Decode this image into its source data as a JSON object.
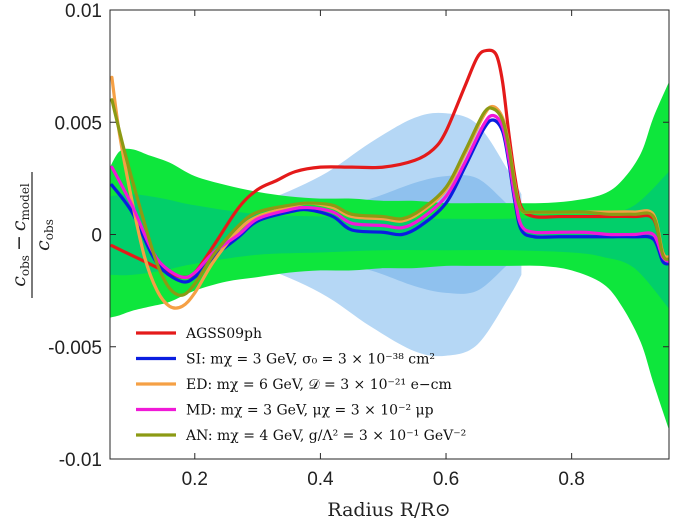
{
  "chart_data": {
    "type": "line",
    "title": "",
    "xlabel": "Radius R/R⊙",
    "ylabel_parts": {
      "top_sym": "c",
      "top_sub1": "obs",
      "minus": "−",
      "top_sym2": "c",
      "top_sub2": "model",
      "bottom_sym": "c",
      "bottom_sub": "obs"
    },
    "xlim": [
      0.065,
      0.955
    ],
    "ylim": [
      -0.01,
      0.01
    ],
    "xticks": [
      0.2,
      0.4,
      0.6,
      0.8
    ],
    "xtick_labels": [
      "0.2",
      "0.4",
      "0.6",
      "0.8"
    ],
    "yticks": [
      -0.01,
      -0.005,
      0,
      0.005,
      0.01
    ],
    "ytick_labels": [
      "-0.01",
      "-0.005",
      "0",
      "0.005",
      "0.01"
    ],
    "grid": false,
    "legend_position": "lower-left",
    "colors": {
      "band_light_blue": "#b5d7f5",
      "band_blue": "#8fc1ee",
      "band_green_outer": "#0ee63c",
      "band_green_inner": "#02cf6a",
      "AGSS09ph": "#e41a1a",
      "SI": "#0a1ee0",
      "ED": "#f5a045",
      "MD": "#f019d7",
      "AN": "#8c9a14"
    },
    "bands": [
      {
        "name": "light-blue-band",
        "x": [
          0.09,
          0.15,
          0.2,
          0.3,
          0.4,
          0.48,
          0.55,
          0.6,
          0.65,
          0.7,
          0.72
        ],
        "upper": [
          0.0008,
          0.0008,
          0.0008,
          0.0014,
          0.0026,
          0.0041,
          0.0052,
          0.0054,
          0.0049,
          0.0028,
          0.0018
        ],
        "lower": [
          -0.0008,
          -0.0008,
          -0.0008,
          -0.0014,
          -0.0026,
          -0.0041,
          -0.0052,
          -0.0054,
          -0.0049,
          -0.0028,
          -0.0018
        ]
      },
      {
        "name": "blue-band",
        "x": [
          0.09,
          0.2,
          0.3,
          0.4,
          0.48,
          0.55,
          0.6,
          0.65,
          0.7,
          0.72
        ],
        "upper": [
          0.0005,
          0.0005,
          0.0007,
          0.0011,
          0.0016,
          0.0023,
          0.0026,
          0.0025,
          0.0013,
          0.001
        ],
        "lower": [
          -0.0005,
          -0.0005,
          -0.0007,
          -0.0011,
          -0.0016,
          -0.0023,
          -0.0026,
          -0.0025,
          -0.0013,
          -0.001
        ]
      },
      {
        "name": "green-outer-band",
        "x": [
          0.065,
          0.08,
          0.1,
          0.13,
          0.16,
          0.2,
          0.25,
          0.3,
          0.35,
          0.4,
          0.45,
          0.5,
          0.55,
          0.6,
          0.65,
          0.7,
          0.75,
          0.8,
          0.85,
          0.88,
          0.91,
          0.93,
          0.955
        ],
        "upper": [
          0.003,
          0.0037,
          0.0038,
          0.0035,
          0.0032,
          0.0026,
          0.0022,
          0.0019,
          0.0017,
          0.0016,
          0.0016,
          0.0015,
          0.0015,
          0.0014,
          0.0014,
          0.0014,
          0.0014,
          0.0015,
          0.0018,
          0.0024,
          0.0036,
          0.0052,
          0.0068
        ],
        "lower": [
          -0.0037,
          -0.0036,
          -0.0034,
          -0.0032,
          -0.003,
          -0.0025,
          -0.0021,
          -0.0019,
          -0.0017,
          -0.0016,
          -0.0016,
          -0.0015,
          -0.0015,
          -0.0014,
          -0.0014,
          -0.0014,
          -0.0014,
          -0.0016,
          -0.0022,
          -0.0032,
          -0.0048,
          -0.0066,
          -0.0087
        ]
      },
      {
        "name": "green-inner-band",
        "x": [
          0.065,
          0.1,
          0.15,
          0.2,
          0.3,
          0.4,
          0.5,
          0.6,
          0.7,
          0.8,
          0.85,
          0.9,
          0.955
        ],
        "upper": [
          0.0017,
          0.0018,
          0.0016,
          0.0013,
          0.0009,
          0.0008,
          0.0007,
          0.0007,
          0.0007,
          0.0008,
          0.0009,
          0.0013,
          0.0028
        ],
        "lower": [
          -0.0018,
          -0.0018,
          -0.0016,
          -0.0013,
          -0.0009,
          -0.0008,
          -0.0007,
          -0.0007,
          -0.0007,
          -0.0008,
          -0.001,
          -0.0015,
          -0.0033
        ]
      }
    ],
    "series": [
      {
        "name": "AGSS09ph",
        "color_key": "AGSS09ph",
        "x": [
          0.068,
          0.09,
          0.12,
          0.15,
          0.18,
          0.2,
          0.23,
          0.27,
          0.3,
          0.33,
          0.36,
          0.4,
          0.45,
          0.5,
          0.55,
          0.58,
          0.6,
          0.63,
          0.65,
          0.665,
          0.68,
          0.69,
          0.7,
          0.71,
          0.72,
          0.74,
          0.78,
          0.82,
          0.86,
          0.9,
          0.93,
          0.945,
          0.955
        ],
        "y": [
          -0.0005,
          -0.0008,
          -0.0012,
          -0.0016,
          -0.0019,
          -0.0017,
          -0.0005,
          0.0012,
          0.002,
          0.0024,
          0.0028,
          0.003,
          0.003,
          0.003,
          0.0033,
          0.0038,
          0.0046,
          0.0066,
          0.0079,
          0.0082,
          0.008,
          0.0068,
          0.0045,
          0.0025,
          0.0012,
          0.0008,
          0.0008,
          0.0008,
          0.0008,
          0.0008,
          0.0007,
          -0.0008,
          -0.0012
        ]
      },
      {
        "name": "SI: mχ = 3 GeV, σ0 = 3 × 10⁻³⁸ cm²",
        "color_key": "SI",
        "x": [
          0.068,
          0.1,
          0.13,
          0.15,
          0.18,
          0.2,
          0.23,
          0.27,
          0.3,
          0.35,
          0.38,
          0.42,
          0.45,
          0.5,
          0.53,
          0.56,
          0.6,
          0.63,
          0.66,
          0.675,
          0.69,
          0.7,
          0.71,
          0.72,
          0.74,
          0.78,
          0.82,
          0.86,
          0.9,
          0.93,
          0.945,
          0.955
        ],
        "y": [
          0.0022,
          0.001,
          -0.0008,
          -0.0016,
          -0.0021,
          -0.0019,
          -0.001,
          -0.0001,
          0.0006,
          0.001,
          0.0011,
          0.0008,
          0.0002,
          0.0001,
          0.0,
          0.0004,
          0.0014,
          0.003,
          0.0047,
          0.0051,
          0.0046,
          0.0032,
          0.0014,
          0.0002,
          -0.0001,
          -0.0001,
          -0.0001,
          -0.0001,
          -0.0001,
          -0.0002,
          -0.0012,
          -0.0013
        ]
      },
      {
        "name": "ED: mχ = 6 GeV, 𝒟 = 3 × 10⁻²¹ e−cm",
        "color_key": "ED",
        "x": [
          0.068,
          0.08,
          0.1,
          0.12,
          0.14,
          0.16,
          0.18,
          0.2,
          0.23,
          0.27,
          0.3,
          0.35,
          0.38,
          0.42,
          0.45,
          0.5,
          0.53,
          0.56,
          0.6,
          0.63,
          0.66,
          0.675,
          0.69,
          0.7,
          0.71,
          0.72,
          0.74,
          0.78,
          0.82,
          0.86,
          0.9,
          0.93,
          0.945,
          0.955
        ],
        "y": [
          0.007,
          0.0045,
          0.0015,
          -0.001,
          -0.0025,
          -0.0032,
          -0.0032,
          -0.0026,
          -0.0012,
          0.0002,
          0.0008,
          0.0012,
          0.0014,
          0.0012,
          0.0008,
          0.0007,
          0.0006,
          0.001,
          0.002,
          0.0036,
          0.0053,
          0.0057,
          0.0052,
          0.004,
          0.0022,
          0.0011,
          0.001,
          0.001,
          0.001,
          0.001,
          0.001,
          0.0009,
          -0.0008,
          -0.001
        ]
      },
      {
        "name": "MD: mχ = 3 GeV, μχ = 3 × 10⁻² μp",
        "color_key": "MD",
        "x": [
          0.068,
          0.1,
          0.13,
          0.15,
          0.18,
          0.2,
          0.23,
          0.27,
          0.3,
          0.35,
          0.38,
          0.42,
          0.45,
          0.5,
          0.53,
          0.56,
          0.6,
          0.63,
          0.66,
          0.675,
          0.69,
          0.7,
          0.71,
          0.72,
          0.74,
          0.78,
          0.82,
          0.86,
          0.9,
          0.93,
          0.945,
          0.955
        ],
        "y": [
          0.003,
          0.0013,
          -0.0006,
          -0.0014,
          -0.0019,
          -0.0017,
          -0.0008,
          0.0,
          0.0007,
          0.0011,
          0.0012,
          0.001,
          0.0005,
          0.0004,
          0.0003,
          0.0007,
          0.0017,
          0.0032,
          0.0049,
          0.0053,
          0.0048,
          0.0034,
          0.0016,
          0.0004,
          0.0001,
          0.0001,
          0.0001,
          0.0,
          0.0,
          0.0,
          -0.001,
          -0.0012
        ]
      },
      {
        "name": "AN: mχ = 4 GeV, g/Λ² = 3 × 10⁻¹ GeV⁻²",
        "color_key": "AN",
        "x": [
          0.068,
          0.09,
          0.12,
          0.14,
          0.16,
          0.18,
          0.2,
          0.23,
          0.27,
          0.3,
          0.35,
          0.38,
          0.42,
          0.45,
          0.5,
          0.53,
          0.56,
          0.6,
          0.63,
          0.66,
          0.675,
          0.69,
          0.7,
          0.71,
          0.72,
          0.74,
          0.78,
          0.82,
          0.86,
          0.9,
          0.93,
          0.945,
          0.955
        ],
        "y": [
          0.006,
          0.0035,
          0.0005,
          -0.0013,
          -0.0024,
          -0.0027,
          -0.0022,
          -0.0009,
          0.0004,
          0.001,
          0.0013,
          0.0014,
          0.0013,
          0.0009,
          0.0008,
          0.0007,
          0.0011,
          0.0021,
          0.0037,
          0.0054,
          0.0056,
          0.0051,
          0.0039,
          0.0021,
          0.0011,
          0.001,
          0.001,
          0.001,
          0.0009,
          0.0009,
          0.0008,
          -0.0009,
          -0.0011
        ]
      }
    ],
    "legend": [
      {
        "key": "AGSS09ph",
        "text": "AGSS09ph"
      },
      {
        "key": "SI",
        "text": "SI: mχ = 3 GeV, σ₀ = 3 × 10⁻³⁸ cm²"
      },
      {
        "key": "ED",
        "text": "ED: mχ = 6 GeV, 𝒟 = 3 × 10⁻²¹ e−cm"
      },
      {
        "key": "MD",
        "text": "MD: mχ = 3 GeV, μχ = 3 × 10⁻² μp"
      },
      {
        "key": "AN",
        "text": "AN: mχ = 4 GeV, g/Λ² = 3 × 10⁻¹ GeV⁻²"
      }
    ]
  }
}
